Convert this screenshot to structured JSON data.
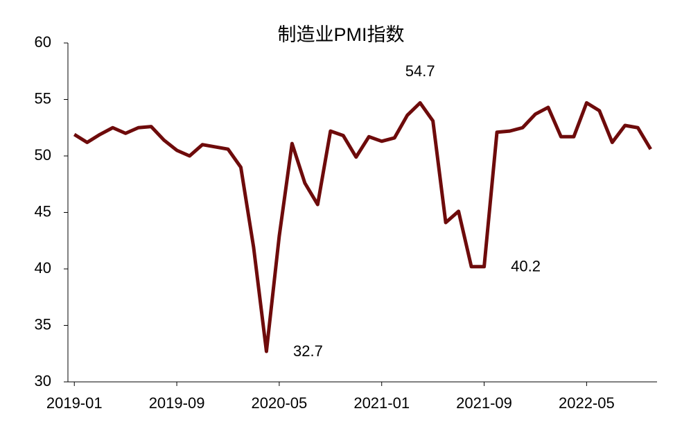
{
  "chart_data": {
    "type": "line",
    "title": "制造业PMI指数",
    "categories": [
      "2019-01",
      null,
      null,
      null,
      null,
      null,
      null,
      null,
      "2019-09",
      null,
      null,
      null,
      null,
      null,
      null,
      null,
      "2020-05",
      null,
      null,
      null,
      null,
      null,
      null,
      null,
      "2021-01",
      null,
      null,
      null,
      null,
      null,
      null,
      null,
      "2021-09",
      null,
      null,
      null,
      null,
      null,
      null,
      null,
      "2022-05",
      null,
      null,
      null,
      null,
      null
    ],
    "series": [
      {
        "name": "制造业PMI",
        "color": "#6e0b0b",
        "values": [
          51.9,
          51.2,
          51.9,
          52.5,
          52.0,
          52.5,
          52.6,
          51.4,
          50.5,
          50.0,
          51.0,
          50.8,
          50.6,
          49.0,
          41.9,
          32.7,
          42.9,
          51.1,
          47.6,
          45.7,
          52.2,
          51.8,
          49.9,
          51.7,
          51.3,
          51.6,
          53.6,
          54.7,
          53.1,
          44.1,
          45.1,
          40.2,
          40.2,
          52.1,
          52.2,
          52.5,
          53.7,
          54.3,
          51.7,
          51.7,
          54.7,
          54.0,
          51.2,
          52.7,
          52.5,
          50.6
        ],
        "value_labels": [
          null,
          null,
          null,
          null,
          null,
          null,
          null,
          null,
          null,
          null,
          null,
          null,
          null,
          null,
          null,
          "32.7",
          null,
          null,
          null,
          null,
          null,
          null,
          null,
          null,
          null,
          null,
          null,
          "54.7",
          null,
          null,
          null,
          null,
          "40.2",
          null,
          null,
          null,
          null,
          null,
          null,
          null,
          null,
          null,
          null,
          null,
          null,
          null
        ]
      }
    ],
    "ylim": [
      30,
      60
    ],
    "yticks": [
      30,
      35,
      40,
      45,
      50,
      55,
      60
    ],
    "grid": false
  }
}
